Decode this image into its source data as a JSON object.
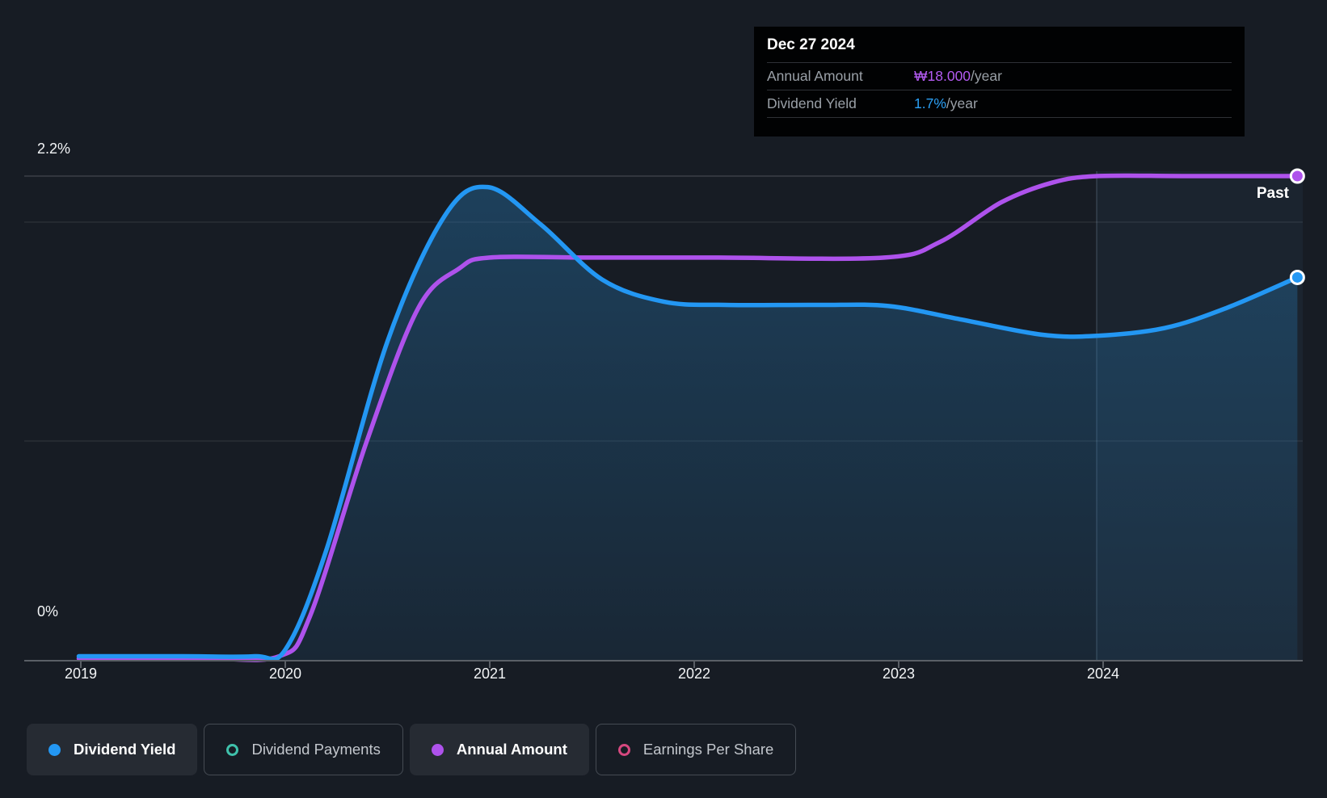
{
  "axis": {
    "y_top_label": "2.2%",
    "y_bottom_label": "0%"
  },
  "past_label": "Past",
  "tooltip": {
    "date": "Dec 27 2024",
    "rows": [
      {
        "label": "Annual Amount",
        "value": "₩18.000",
        "suffix": "/year",
        "color": "#B35BF2"
      },
      {
        "label": "Dividend Yield",
        "value": "1.7%",
        "suffix": "/year",
        "color": "#2B9FF4"
      }
    ]
  },
  "legend": [
    {
      "label": "Dividend Yield",
      "color": "#2397F3",
      "style": "filled",
      "active": true
    },
    {
      "label": "Dividend Payments",
      "color": "#3FC1AB",
      "style": "ring",
      "active": false
    },
    {
      "label": "Annual Amount",
      "color": "#AE52EC",
      "style": "filled",
      "active": true
    },
    {
      "label": "Earnings Per Share",
      "color": "#D6487F",
      "style": "ring",
      "active": false
    }
  ],
  "colors": {
    "dividend_yield_line": "#2397F3",
    "annual_amount_line": "#AE52EC",
    "grid": "rgba(255,255,255,0.12)",
    "grid_top": "rgba(255,255,255,0.16)",
    "axis_line": "#5A5F66",
    "past_band": "rgba(80,140,200,0.07)",
    "past_divider": "rgba(170,200,230,0.30)"
  },
  "chart_data": {
    "type": "line",
    "title": "Dividend history",
    "x_ticks": [
      2019,
      2020,
      2021,
      2022,
      2023,
      2024
    ],
    "x_range": [
      2018.99,
      2024.99
    ],
    "ylim_percent": [
      0,
      2.2
    ],
    "y_gridlines_percent": [
      2.2,
      2.0,
      1.0,
      0
    ],
    "y_axis_note": "left axis labeled 2.2% (top) and 0% (bottom); Annual Amount series plotted on same pixel scale as percent-equivalent",
    "past_divider_x": 2023.97,
    "last_point_date": "Dec 27 2024",
    "last_values": {
      "annual_amount": "₩18.000/year",
      "dividend_yield": "1.7%/year"
    },
    "series": [
      {
        "name": "Dividend Yield",
        "unit": "%",
        "color": "#2397F3",
        "fill": true,
        "marker_end": true,
        "points": [
          [
            2018.99,
            0.02
          ],
          [
            2019.5,
            0.02
          ],
          [
            2019.85,
            0.02
          ],
          [
            2020.0,
            0.05
          ],
          [
            2020.2,
            0.5
          ],
          [
            2020.5,
            1.45
          ],
          [
            2020.78,
            2.02
          ],
          [
            2020.99,
            2.15
          ],
          [
            2021.25,
            1.98
          ],
          [
            2021.55,
            1.73
          ],
          [
            2021.85,
            1.63
          ],
          [
            2022.15,
            1.615
          ],
          [
            2022.6,
            1.615
          ],
          [
            2022.95,
            1.61
          ],
          [
            2023.3,
            1.55
          ],
          [
            2023.7,
            1.48
          ],
          [
            2023.97,
            1.475
          ],
          [
            2024.3,
            1.51
          ],
          [
            2024.6,
            1.6
          ],
          [
            2024.95,
            1.74
          ]
        ]
      },
      {
        "name": "Annual Amount",
        "unit": "percent-equivalent (₩/share, ends at ₩18.000/year)",
        "color": "#AE52EC",
        "fill": false,
        "marker_end": true,
        "points": [
          [
            2018.99,
            0.01
          ],
          [
            2019.6,
            0.01
          ],
          [
            2019.97,
            0.02
          ],
          [
            2020.12,
            0.2
          ],
          [
            2020.4,
            1.0
          ],
          [
            2020.65,
            1.6
          ],
          [
            2020.85,
            1.78
          ],
          [
            2021.0,
            1.83
          ],
          [
            2021.5,
            1.83
          ],
          [
            2022.1,
            1.83
          ],
          [
            2022.93,
            1.83
          ],
          [
            2023.2,
            1.9
          ],
          [
            2023.5,
            2.08
          ],
          [
            2023.75,
            2.17
          ],
          [
            2023.97,
            2.2
          ],
          [
            2024.4,
            2.2
          ],
          [
            2024.95,
            2.2
          ]
        ]
      }
    ],
    "legend_position": "bottom",
    "grid": true
  }
}
